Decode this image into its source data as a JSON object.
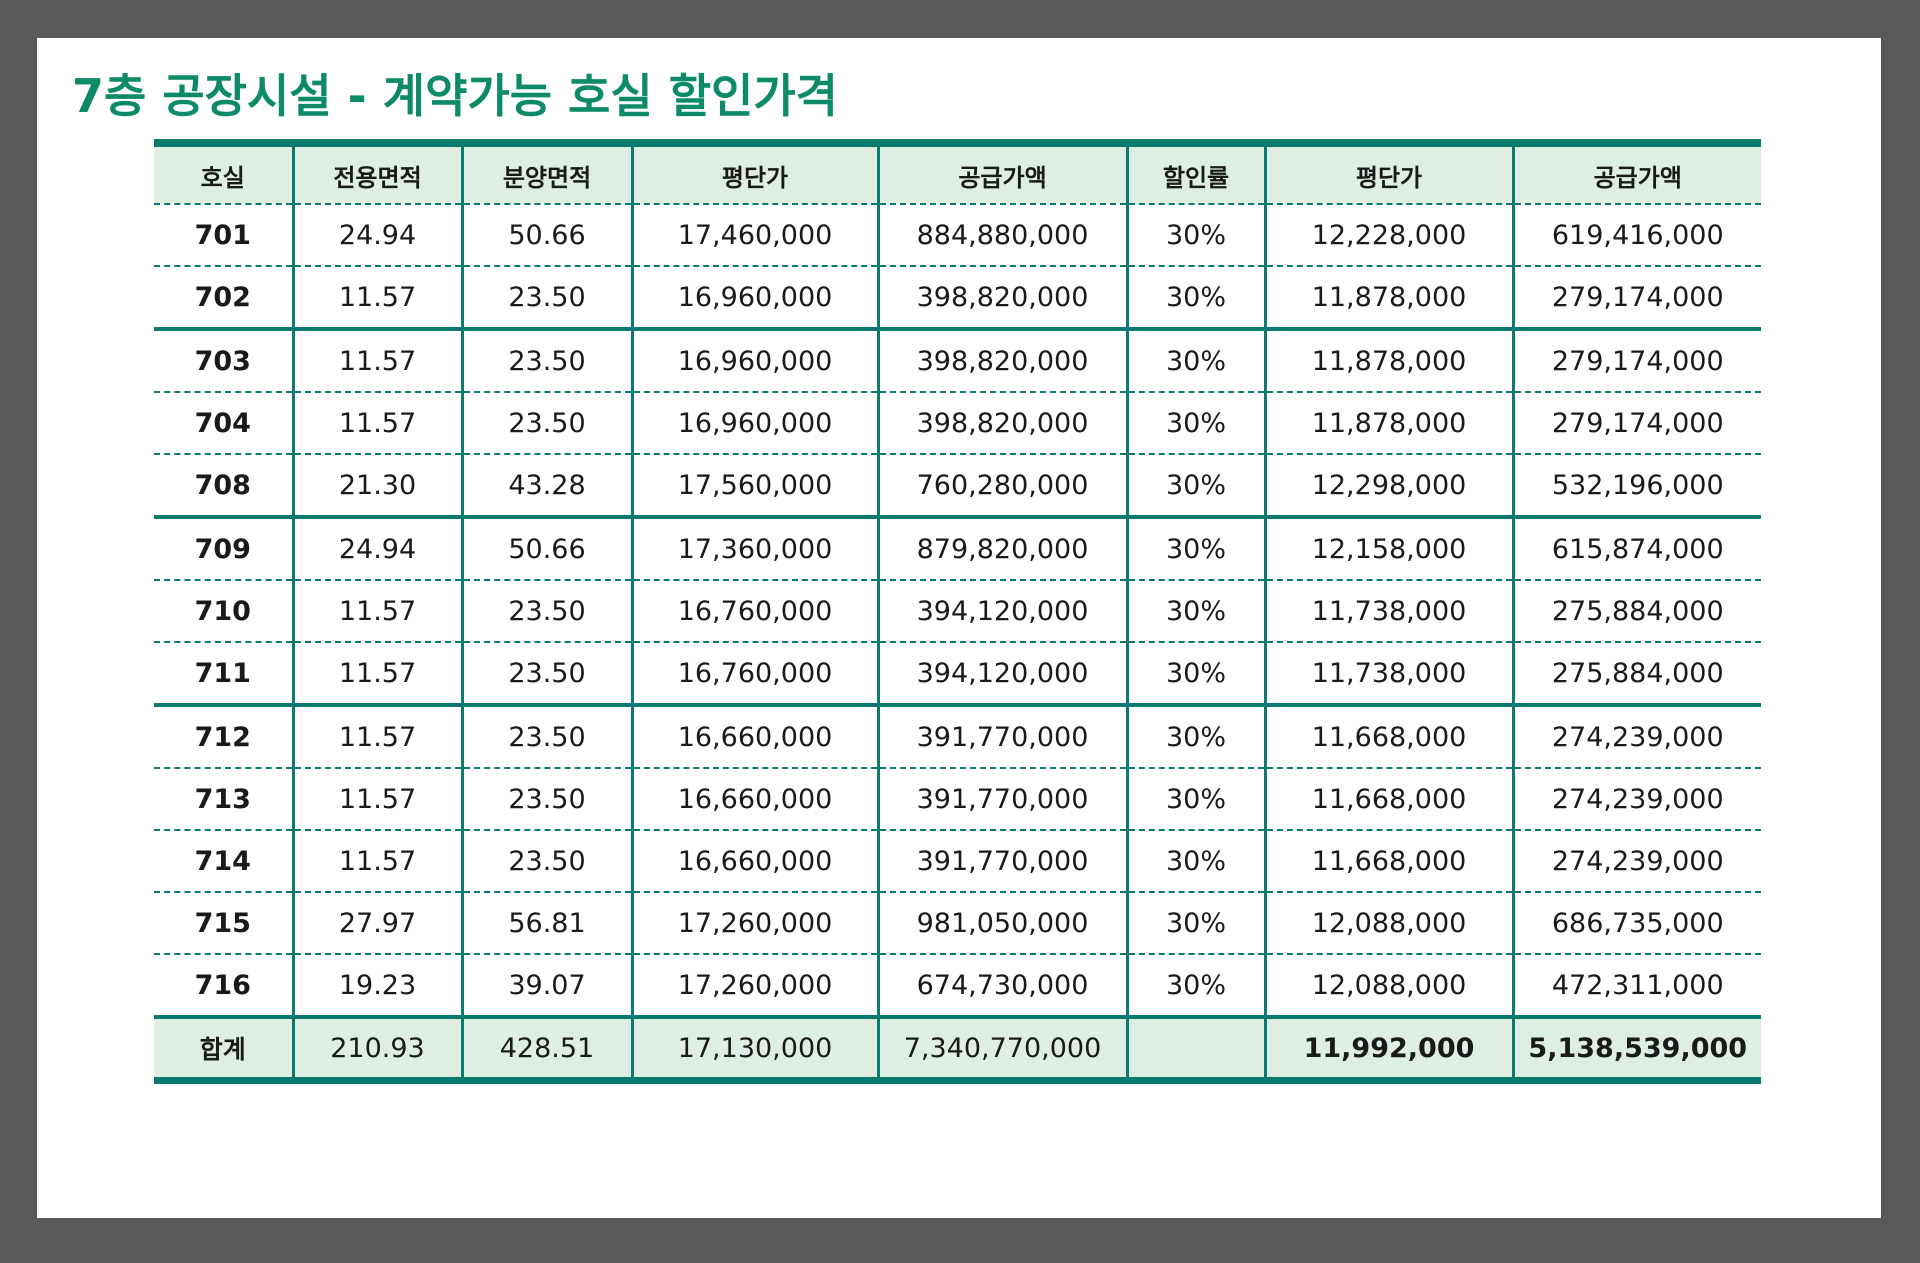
{
  "title": "7층 공장시설 - 계약가능 호실 할인가격",
  "colors": {
    "accent": "#0d8a68",
    "border": "#0b7a6e",
    "header_bg": "#dfeee2",
    "frame": "#595959"
  },
  "table": {
    "headers": [
      "호실",
      "전용면적",
      "분양면적",
      "평단가",
      "공급가액",
      "할인률",
      "평단가",
      "공급가액"
    ],
    "rows": [
      [
        "701",
        "24.94",
        "50.66",
        "17,460,000",
        "884,880,000",
        "30%",
        "12,228,000",
        "619,416,000"
      ],
      [
        "702",
        "11.57",
        "23.50",
        "16,960,000",
        "398,820,000",
        "30%",
        "11,878,000",
        "279,174,000"
      ],
      [
        "703",
        "11.57",
        "23.50",
        "16,960,000",
        "398,820,000",
        "30%",
        "11,878,000",
        "279,174,000"
      ],
      [
        "704",
        "11.57",
        "23.50",
        "16,960,000",
        "398,820,000",
        "30%",
        "11,878,000",
        "279,174,000"
      ],
      [
        "708",
        "21.30",
        "43.28",
        "17,560,000",
        "760,280,000",
        "30%",
        "12,298,000",
        "532,196,000"
      ],
      [
        "709",
        "24.94",
        "50.66",
        "17,360,000",
        "879,820,000",
        "30%",
        "12,158,000",
        "615,874,000"
      ],
      [
        "710",
        "11.57",
        "23.50",
        "16,760,000",
        "394,120,000",
        "30%",
        "11,738,000",
        "275,884,000"
      ],
      [
        "711",
        "11.57",
        "23.50",
        "16,760,000",
        "394,120,000",
        "30%",
        "11,738,000",
        "275,884,000"
      ],
      [
        "712",
        "11.57",
        "23.50",
        "16,660,000",
        "391,770,000",
        "30%",
        "11,668,000",
        "274,239,000"
      ],
      [
        "713",
        "11.57",
        "23.50",
        "16,660,000",
        "391,770,000",
        "30%",
        "11,668,000",
        "274,239,000"
      ],
      [
        "714",
        "11.57",
        "23.50",
        "16,660,000",
        "391,770,000",
        "30%",
        "11,668,000",
        "274,239,000"
      ],
      [
        "715",
        "27.97",
        "56.81",
        "17,260,000",
        "981,050,000",
        "30%",
        "12,088,000",
        "686,735,000"
      ],
      [
        "716",
        "19.23",
        "39.07",
        "17,260,000",
        "674,730,000",
        "30%",
        "12,088,000",
        "472,311,000"
      ]
    ],
    "total": [
      "합계",
      "210.93",
      "428.51",
      "17,130,000",
      "7,340,770,000",
      "",
      "11,992,000",
      "5,138,539,000"
    ]
  }
}
